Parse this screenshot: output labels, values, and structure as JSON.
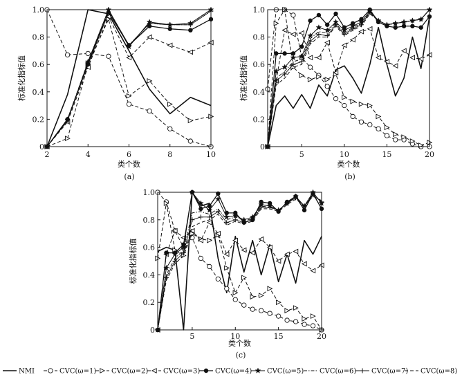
{
  "chart_data": [
    {
      "type": "line",
      "panel_label": "(a)",
      "xlabel": "类个数",
      "ylabel": "标准化指标值",
      "xlim": [
        2,
        10
      ],
      "ylim": [
        0,
        1
      ],
      "xticks": [
        "2",
        "4",
        "6",
        "8",
        "10"
      ],
      "yticks": [
        "0",
        "0.2",
        "0.4",
        "0.6",
        "0.8",
        "1.0"
      ],
      "x": [
        2,
        3,
        4,
        5,
        6,
        7,
        8,
        9,
        10
      ],
      "series": [
        {
          "name": "NMI",
          "values": [
            0,
            0.38,
            1.0,
            0.97,
            0.7,
            0.42,
            0.24,
            0.36,
            0.3
          ]
        },
        {
          "name": "CVC(ω=1)",
          "values": [
            1.0,
            0.67,
            0.68,
            0.66,
            0.31,
            0.26,
            0.13,
            0.04,
            0.0
          ]
        },
        {
          "name": "CVC(ω=2)",
          "values": [
            0,
            0.06,
            0.6,
            0.93,
            0.37,
            0.48,
            0.31,
            0.19,
            0.22
          ]
        },
        {
          "name": "CVC(ω=3)",
          "values": [
            0,
            0.18,
            0.58,
            0.95,
            0.65,
            0.8,
            0.74,
            0.69,
            0.76
          ]
        },
        {
          "name": "CVC(ω=4)",
          "values": [
            0,
            0.2,
            0.6,
            0.98,
            0.74,
            0.88,
            0.86,
            0.85,
            0.93
          ]
        },
        {
          "name": "CVC(ω=5)",
          "values": [
            0,
            0.19,
            0.62,
            1.0,
            0.73,
            0.91,
            0.89,
            0.9,
            1.0
          ]
        },
        {
          "name": "CVC(ω=6)",
          "values": [
            0,
            0.19,
            0.61,
            0.99,
            0.74,
            0.9,
            0.89,
            0.89,
            0.99
          ]
        },
        {
          "name": "CVC(ω=7)",
          "values": [
            0,
            0.2,
            0.61,
            1.0,
            0.74,
            0.9,
            0.89,
            0.89,
            0.99
          ]
        },
        {
          "name": "CVC(ω=8)",
          "values": [
            0,
            0.2,
            0.62,
            1.0,
            0.74,
            0.9,
            0.89,
            0.9,
            1.0
          ]
        }
      ]
    },
    {
      "type": "line",
      "panel_label": "(b)",
      "xlabel": "类个数",
      "ylabel": "标准化指标值",
      "xlim": [
        1,
        20
      ],
      "ylim": [
        0,
        1
      ],
      "xticks": [
        "5",
        "10",
        "15",
        "20"
      ],
      "yticks": [
        "0",
        "0.2",
        "0.4",
        "0.6",
        "0.8",
        "1.0"
      ],
      "x": [
        1,
        2,
        3,
        4,
        5,
        6,
        7,
        8,
        9,
        10,
        11,
        12,
        13,
        14,
        15,
        16,
        17,
        18,
        19,
        20
      ],
      "series": [
        {
          "name": "NMI",
          "values": [
            0,
            0.3,
            0.37,
            0.28,
            0.38,
            0.28,
            0.45,
            0.37,
            0.56,
            0.59,
            0.5,
            0.39,
            0.6,
            0.87,
            0.6,
            0.37,
            0.5,
            0.8,
            0.57,
            0.95
          ]
        },
        {
          "name": "CVC(ω=1)",
          "values": [
            0.42,
            1.0,
            1.0,
            0.96,
            0.65,
            0.58,
            0.52,
            0.44,
            0.35,
            0.3,
            0.22,
            0.18,
            0.16,
            0.13,
            0.08,
            0.05,
            0.05,
            0.02,
            0.0,
            0.0
          ]
        },
        {
          "name": "CVC(ω=2)",
          "values": [
            0,
            0.9,
            1.0,
            0.58,
            0.52,
            0.49,
            0.51,
            0.49,
            0.53,
            0.36,
            0.33,
            0.31,
            0.3,
            0.22,
            0.14,
            0.09,
            0.07,
            0.04,
            0.01,
            0.03
          ]
        },
        {
          "name": "CVC(ω=3)",
          "values": [
            0,
            0.48,
            0.85,
            0.82,
            0.83,
            0.65,
            0.65,
            0.76,
            0.54,
            0.74,
            0.78,
            0.84,
            0.86,
            0.65,
            0.62,
            0.59,
            0.7,
            0.65,
            0.64,
            0.67
          ]
        },
        {
          "name": "CVC(ω=4)",
          "values": [
            0,
            0.68,
            0.68,
            0.68,
            0.73,
            0.92,
            0.96,
            0.89,
            0.97,
            0.87,
            0.9,
            0.93,
            1.0,
            0.91,
            0.88,
            0.87,
            0.88,
            0.88,
            0.87,
            0.95
          ]
        },
        {
          "name": "CVC(ω=5)",
          "values": [
            0,
            0.55,
            0.58,
            0.65,
            0.66,
            0.81,
            0.87,
            0.85,
            0.91,
            0.85,
            0.88,
            0.91,
            0.99,
            0.92,
            0.89,
            0.9,
            0.91,
            0.92,
            0.93,
            1.0
          ]
        },
        {
          "name": "CVC(ω=6)",
          "values": [
            0,
            0.5,
            0.55,
            0.62,
            0.64,
            0.79,
            0.84,
            0.83,
            0.9,
            0.83,
            0.87,
            0.9,
            0.98,
            0.92,
            0.89,
            0.9,
            0.91,
            0.92,
            0.93,
            1.0
          ]
        },
        {
          "name": "CVC(ω=7)",
          "values": [
            0,
            0.48,
            0.53,
            0.6,
            0.62,
            0.77,
            0.82,
            0.81,
            0.89,
            0.82,
            0.86,
            0.89,
            0.98,
            0.92,
            0.89,
            0.9,
            0.91,
            0.92,
            0.93,
            1.0
          ]
        },
        {
          "name": "CVC(ω=8)",
          "values": [
            0,
            0.45,
            0.5,
            0.58,
            0.6,
            0.75,
            0.8,
            0.8,
            0.88,
            0.81,
            0.85,
            0.88,
            0.97,
            0.92,
            0.89,
            0.9,
            0.91,
            0.92,
            0.93,
            1.0
          ]
        }
      ]
    },
    {
      "type": "line",
      "panel_label": "(c)",
      "xlabel": "类个数",
      "ylabel": "标准化指标值",
      "xlim": [
        1,
        20
      ],
      "ylim": [
        0,
        1
      ],
      "xticks": [
        "5",
        "10",
        "15",
        "20"
      ],
      "yticks": [
        "0",
        "0.2",
        "0.4",
        "0.6",
        "0.8",
        "1.0"
      ],
      "x": [
        1,
        2,
        3,
        4,
        5,
        6,
        7,
        8,
        9,
        10,
        11,
        12,
        13,
        14,
        15,
        16,
        17,
        18,
        19,
        20
      ],
      "series": [
        {
          "name": "NMI",
          "values": [
            0.57,
            0.6,
            0.58,
            0.0,
            1.0,
            0.9,
            0.92,
            0.52,
            0.27,
            0.68,
            0.42,
            0.65,
            0.4,
            0.62,
            0.35,
            0.55,
            0.34,
            0.65,
            0.55,
            0.68
          ]
        },
        {
          "name": "CVC(ω=1)",
          "values": [
            1.0,
            0.93,
            0.72,
            0.6,
            0.67,
            0.52,
            0.46,
            0.37,
            0.3,
            0.22,
            0.18,
            0.15,
            0.14,
            0.12,
            0.1,
            0.07,
            0.06,
            0.04,
            0.03,
            0.0
          ]
        },
        {
          "name": "CVC(ω=2)",
          "values": [
            0.52,
            0.92,
            0.58,
            0.54,
            0.7,
            0.66,
            0.65,
            0.69,
            0.45,
            0.27,
            0.38,
            0.24,
            0.25,
            0.3,
            0.2,
            0.14,
            0.16,
            0.08,
            0.1,
            0.0
          ]
        },
        {
          "name": "CVC(ω=3)",
          "values": [
            0,
            0.55,
            0.72,
            0.67,
            0.72,
            0.65,
            0.78,
            0.7,
            0.55,
            0.65,
            0.58,
            0.56,
            0.66,
            0.6,
            0.5,
            0.55,
            0.57,
            0.48,
            0.43,
            0.47
          ]
        },
        {
          "name": "CVC(ω=4)",
          "values": [
            0,
            0.56,
            0.56,
            0.62,
            1.0,
            0.88,
            0.9,
            0.99,
            0.85,
            0.85,
            0.78,
            0.8,
            0.93,
            0.92,
            0.86,
            0.93,
            0.97,
            0.87,
            0.99,
            0.88
          ]
        },
        {
          "name": "CVC(ω=5)",
          "values": [
            0,
            0.45,
            0.55,
            0.6,
            1.0,
            0.92,
            0.87,
            0.95,
            0.82,
            0.83,
            0.8,
            0.82,
            0.91,
            0.9,
            0.87,
            0.92,
            0.97,
            0.9,
            1.0,
            0.92
          ]
        },
        {
          "name": "CVC(ω=6)",
          "values": [
            0,
            0.4,
            0.52,
            0.58,
            0.85,
            0.86,
            0.84,
            0.88,
            0.8,
            0.82,
            0.79,
            0.81,
            0.9,
            0.89,
            0.87,
            0.92,
            0.96,
            0.9,
            0.99,
            0.93
          ]
        },
        {
          "name": "CVC(ω=7)",
          "values": [
            0,
            0.38,
            0.5,
            0.56,
            0.8,
            0.82,
            0.82,
            0.86,
            0.78,
            0.8,
            0.78,
            0.8,
            0.89,
            0.89,
            0.87,
            0.92,
            0.96,
            0.9,
            0.98,
            0.93
          ]
        },
        {
          "name": "CVC(ω=8)",
          "values": [
            0,
            0.36,
            0.48,
            0.54,
            0.75,
            0.78,
            0.8,
            0.84,
            0.76,
            0.79,
            0.77,
            0.79,
            0.88,
            0.88,
            0.86,
            0.91,
            0.95,
            0.9,
            0.97,
            0.94
          ]
        }
      ]
    }
  ],
  "legend": [
    {
      "label": "NMI",
      "style": "solid",
      "marker": "none"
    },
    {
      "label": "CVC(ω=1)",
      "style": "dash",
      "marker": "circle"
    },
    {
      "label": "CVC(ω=2)",
      "style": "dash",
      "marker": "triangle-right"
    },
    {
      "label": "CVC(ω=3)",
      "style": "dash",
      "marker": "triangle-left"
    },
    {
      "label": "CVC(ω=4)",
      "style": "solid",
      "marker": "filled-circle"
    },
    {
      "label": "CVC(ω=5)",
      "style": "solid",
      "marker": "star"
    },
    {
      "label": "CVC(ω=6)",
      "style": "dashdot",
      "marker": "none"
    },
    {
      "label": "CVC(ω=7)",
      "style": "solid",
      "marker": "plus"
    },
    {
      "label": "CVC(ω=8)",
      "style": "dash",
      "marker": "none"
    }
  ],
  "colors": {
    "ink": "#111111",
    "background": "#ffffff"
  }
}
